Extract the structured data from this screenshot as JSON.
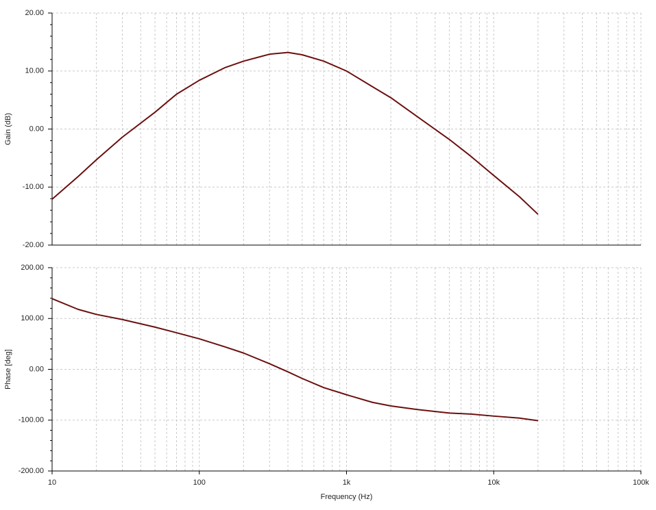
{
  "chart_data": [
    {
      "type": "line",
      "ylabel": "Gain (dB)",
      "log_x": true,
      "grid": true,
      "xlim": [
        10,
        100000
      ],
      "xticks": [
        10,
        100,
        1000,
        10000,
        100000
      ],
      "ylim": [
        -20,
        20
      ],
      "yticks": [
        {
          "value": -20,
          "label": "-20.00"
        },
        {
          "value": -10,
          "label": "-10.00"
        },
        {
          "value": 0,
          "label": "0.00"
        },
        {
          "value": 10,
          "label": "10.00"
        },
        {
          "value": 20,
          "label": "20.00"
        }
      ],
      "x": [
        10,
        15,
        20,
        30,
        50,
        70,
        100,
        150,
        200,
        300,
        400,
        500,
        700,
        1000,
        1500,
        2000,
        3000,
        5000,
        7000,
        10000,
        15000,
        20000
      ],
      "series": [
        {
          "color": "#6b0f0f",
          "values": [
            -12.1,
            -8.2,
            -5.3,
            -1.4,
            2.9,
            6.0,
            8.4,
            10.6,
            11.7,
            12.9,
            13.2,
            12.8,
            11.7,
            10.0,
            7.3,
            5.4,
            2.2,
            -1.8,
            -4.7,
            -8.0,
            -11.7,
            -14.7
          ]
        }
      ]
    },
    {
      "type": "line",
      "ylabel": "Phase [deg]",
      "xlabel": "Frequency (Hz)",
      "log_x": true,
      "grid": true,
      "xlim": [
        10,
        100000
      ],
      "xticks": [
        10,
        100,
        {
          "value": 1000,
          "label": "1k"
        },
        {
          "value": 10000,
          "label": "10k"
        },
        {
          "value": 100000,
          "label": "100k"
        }
      ],
      "ylim": [
        -200,
        200
      ],
      "yticks": [
        {
          "value": -200,
          "label": "-200.00"
        },
        {
          "value": -100,
          "label": "-100.00"
        },
        {
          "value": 0,
          "label": "0.00"
        },
        {
          "value": 100,
          "label": "100.00"
        },
        {
          "value": 200,
          "label": "200.00"
        }
      ],
      "x": [
        10,
        15,
        20,
        30,
        50,
        70,
        100,
        150,
        200,
        300,
        400,
        500,
        700,
        1000,
        1500,
        2000,
        3000,
        5000,
        7000,
        10000,
        15000,
        20000
      ],
      "series": [
        {
          "color": "#6b0f0f",
          "values": [
            139,
            118,
            108,
            98,
            83,
            72,
            60,
            44,
            32,
            11,
            -5,
            -18,
            -36,
            -50,
            -65,
            -72,
            -79,
            -86,
            -88,
            -92,
            -96,
            -101
          ]
        }
      ]
    }
  ]
}
